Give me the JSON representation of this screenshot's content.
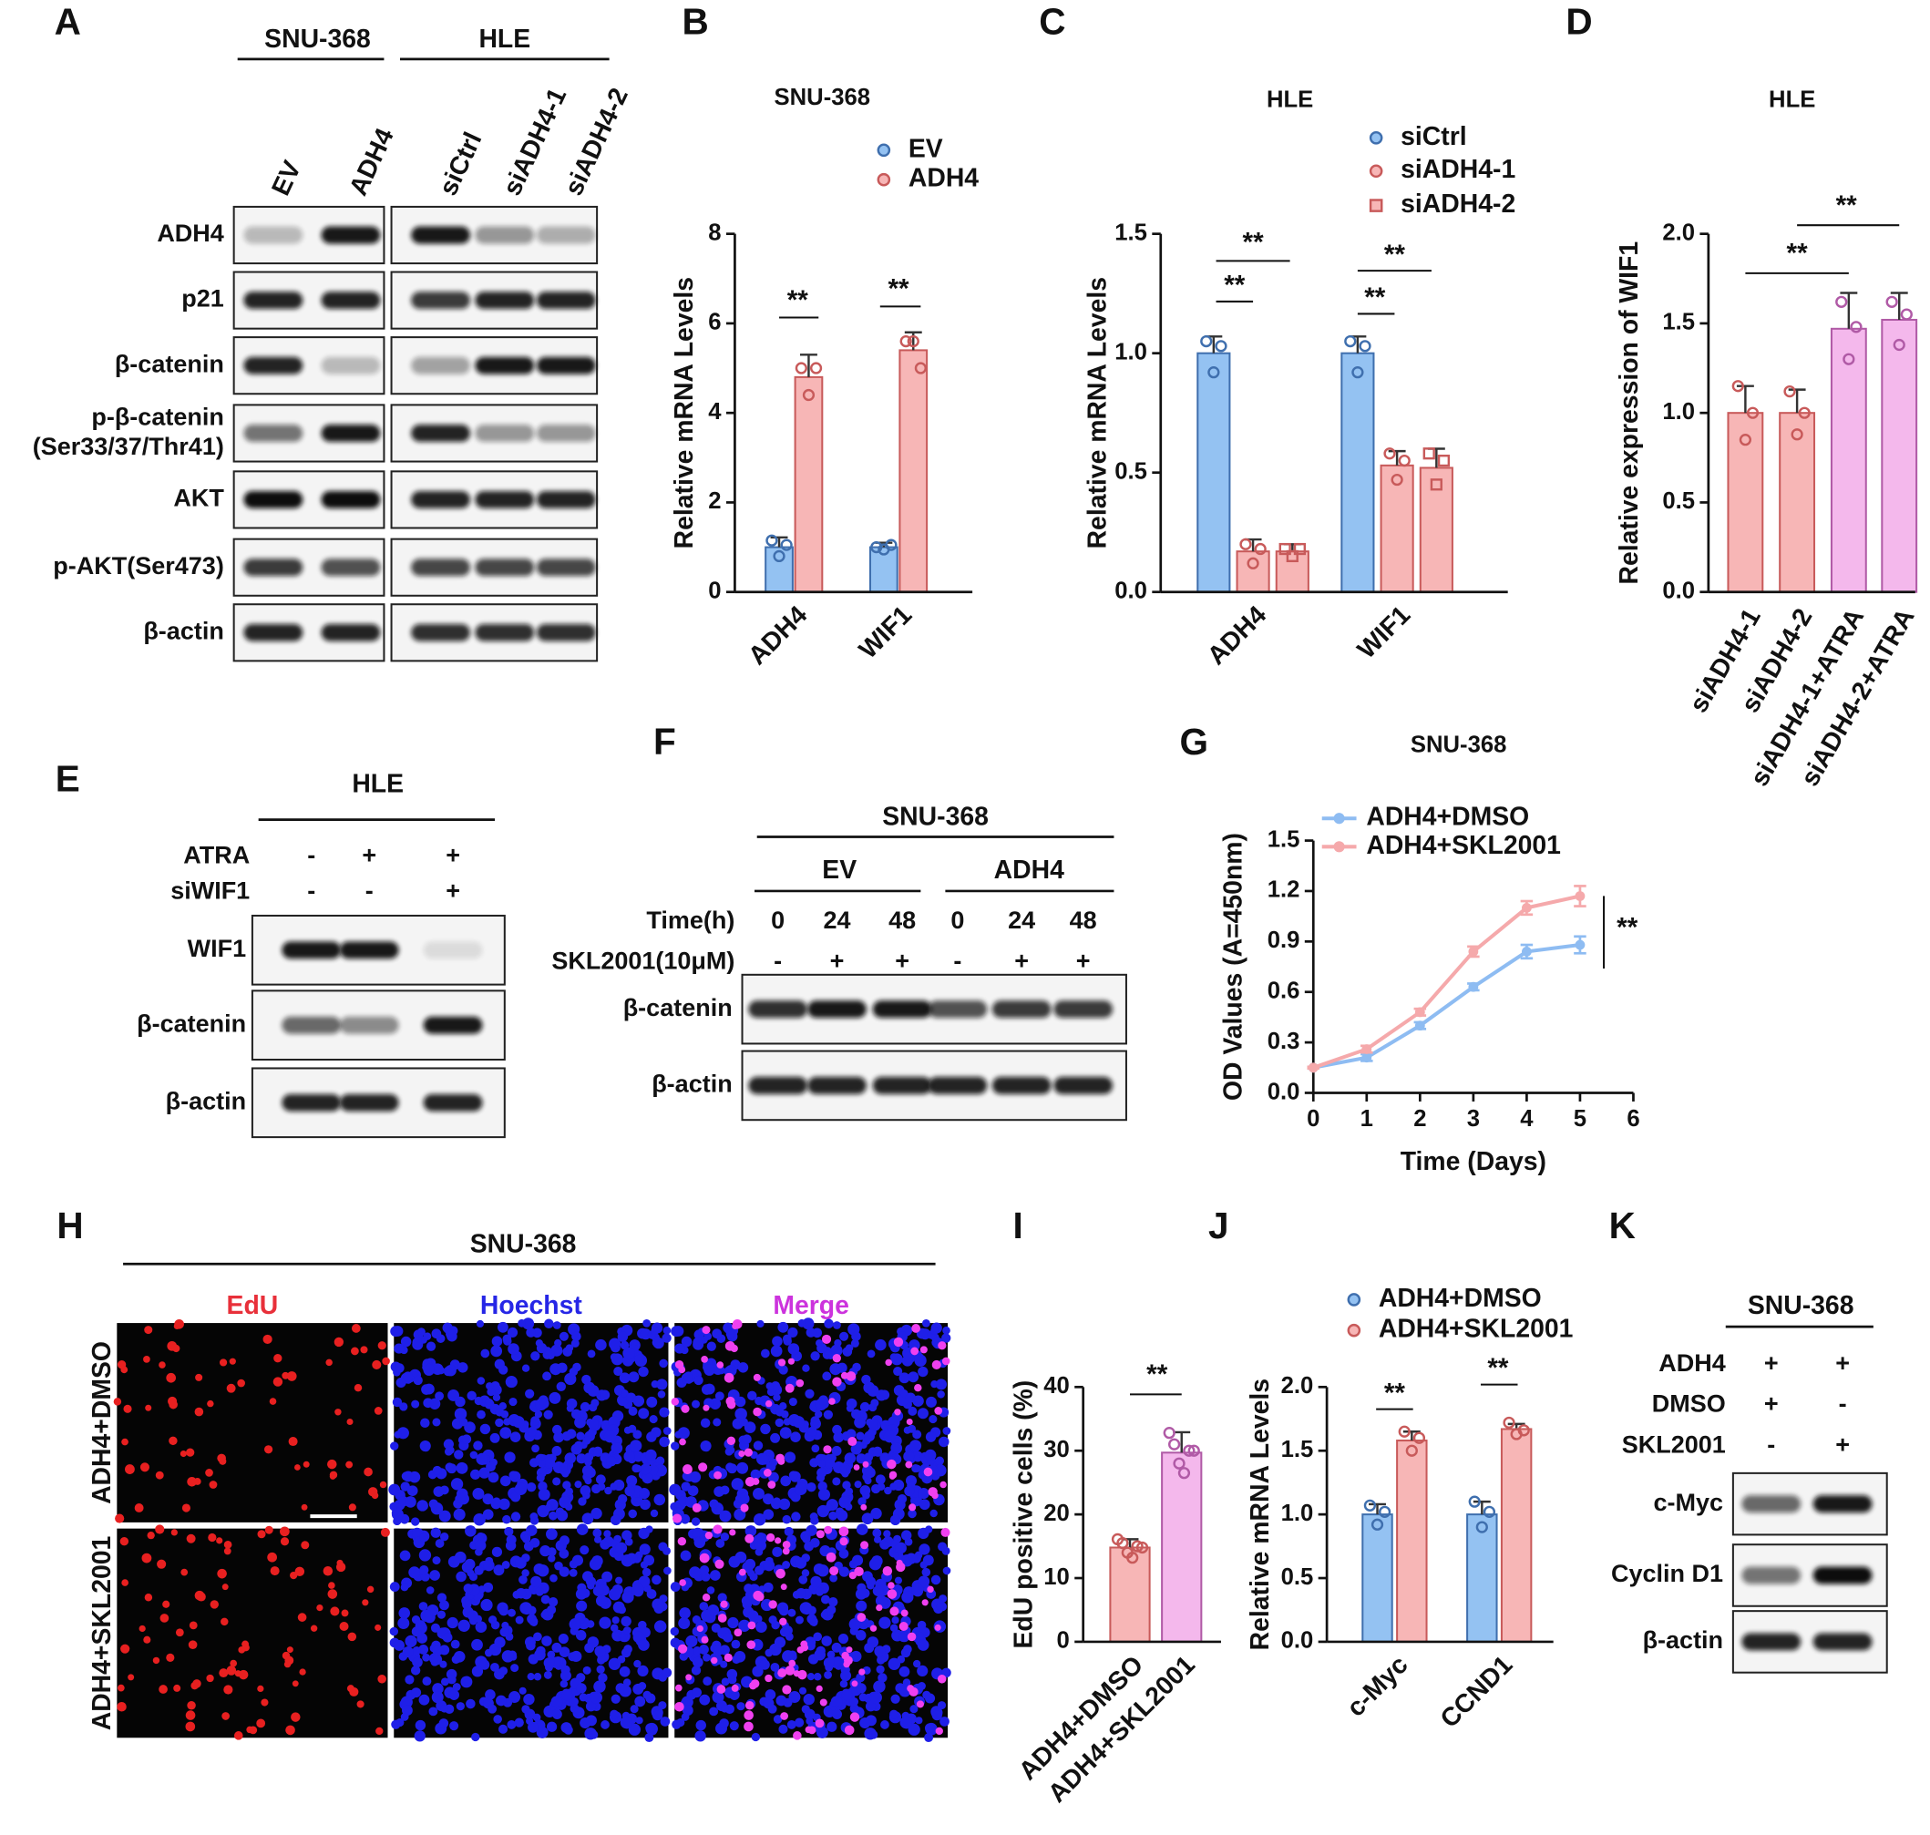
{
  "letters": [
    "A",
    "B",
    "C",
    "D",
    "E",
    "F",
    "G",
    "H",
    "I",
    "J",
    "K"
  ],
  "chart_data": [
    {
      "type": "bar",
      "title": "SNU-368",
      "ylabel": "Relative mRNA Levels",
      "categories": [
        "ADH4",
        "WIF1"
      ],
      "ylim": [
        0,
        8
      ],
      "yticks": [
        0,
        2,
        4,
        6,
        8
      ],
      "series": [
        {
          "name": "EV",
          "color": "#94c2f2",
          "edgecolor": "#3f6fae",
          "marker": "circle",
          "values": [
            1.0,
            1.0
          ],
          "errors": [
            0.22,
            0.1
          ],
          "points": [
            [
              1.15,
              0.8,
              1.05
            ],
            [
              1.0,
              0.95,
              1.05
            ]
          ]
        },
        {
          "name": "ADH4",
          "color": "#f7b6b6",
          "edgecolor": "#c85a5a",
          "marker": "circle",
          "values": [
            4.8,
            5.4
          ],
          "errors": [
            0.5,
            0.4
          ],
          "points": [
            [
              5.0,
              4.4,
              5.0
            ],
            [
              5.6,
              5.6,
              5.0
            ]
          ]
        }
      ],
      "annotations": [
        "**",
        "**"
      ]
    },
    {
      "type": "bar",
      "title": "HLE",
      "ylabel": "Relative mRNA Levels",
      "categories": [
        "ADH4",
        "WIF1"
      ],
      "ylim": [
        0,
        1.5
      ],
      "yticks": [
        {
          "value": 0,
          "label": "0.0"
        },
        0.5,
        {
          "value": 1,
          "label": "1.0"
        },
        1.5
      ],
      "series": [
        {
          "name": "siCtrl",
          "color": "#94c2f2",
          "edgecolor": "#3f6fae",
          "marker": "circle",
          "values": [
            1.0,
            1.0
          ],
          "errors": [
            0.07,
            0.07
          ],
          "points": [
            [
              1.05,
              0.92,
              1.03
            ],
            [
              1.05,
              0.92,
              1.03
            ]
          ]
        },
        {
          "name": "siADH4-1",
          "color": "#f7b6b6",
          "edgecolor": "#c85a5a",
          "marker": "circle",
          "values": [
            0.17,
            0.53
          ],
          "errors": [
            0.05,
            0.06
          ],
          "points": [
            [
              0.2,
              0.12,
              0.18
            ],
            [
              0.58,
              0.47,
              0.55
            ]
          ]
        },
        {
          "name": "siADH4-2",
          "color": "#f7b6b6",
          "edgecolor": "#c85a5a",
          "marker": "square",
          "values": [
            0.17,
            0.52
          ],
          "errors": [
            0.03,
            0.08
          ],
          "points": [
            [
              0.18,
              0.15,
              0.18
            ],
            [
              0.58,
              0.45,
              0.55
            ]
          ]
        }
      ],
      "annotations": [
        "**",
        "**",
        "**",
        "**"
      ]
    },
    {
      "type": "bar",
      "title": "HLE",
      "ylabel": "Relative expression of WIF1",
      "categories": [
        "siADH4-1",
        "siADH4-2",
        "siADH4-1+ATRA",
        "siADH4-2+ATRA"
      ],
      "ylim": [
        0,
        2
      ],
      "yticks": [
        {
          "value": 0,
          "label": "0.0"
        },
        0.5,
        {
          "value": 1,
          "label": "1.0"
        },
        1.5,
        {
          "value": 2,
          "label": "2.0"
        }
      ],
      "values": [
        1.0,
        1.0,
        1.47,
        1.52
      ],
      "errors": [
        0.15,
        0.13,
        0.2,
        0.15
      ],
      "points": [
        [
          1.15,
          0.85,
          1.0
        ],
        [
          1.12,
          0.88,
          1.0
        ],
        [
          1.62,
          1.3,
          1.48
        ],
        [
          1.62,
          1.38,
          1.55
        ]
      ],
      "colors": [
        "#f7b6b6",
        "#f7b6b6",
        "#f4b8ec",
        "#f4b8ec"
      ],
      "edgecolors": [
        "#c85a5a",
        "#c85a5a",
        "#b05aa6",
        "#b05aa6"
      ],
      "marker": "circle",
      "annotations": [
        "**",
        "**"
      ]
    },
    {
      "type": "line",
      "title": "SNU-368",
      "xlabel": "Time (Days)",
      "ylabel": "OD Values (A=450nm)",
      "x": [
        0,
        1,
        2,
        3,
        4,
        5
      ],
      "xlim": [
        0,
        6
      ],
      "xticks": [
        0,
        1,
        2,
        3,
        4,
        5,
        6
      ],
      "ylim": [
        0,
        1.5
      ],
      "yticks": [
        {
          "value": 0,
          "label": "0.0"
        },
        0.3,
        0.6,
        0.9,
        1.2,
        1.5
      ],
      "series": [
        {
          "name": "ADH4+DMSO",
          "color": "#8ebcf2",
          "values": [
            0.15,
            0.21,
            0.4,
            0.63,
            0.84,
            0.88
          ],
          "errors": [
            0.005,
            0.02,
            0.02,
            0.02,
            0.04,
            0.05
          ]
        },
        {
          "name": "ADH4+SKL2001",
          "color": "#f5a9ab",
          "values": [
            0.15,
            0.26,
            0.48,
            0.84,
            1.1,
            1.17
          ],
          "errors": [
            0.005,
            0.02,
            0.02,
            0.03,
            0.04,
            0.06
          ]
        }
      ],
      "annotations": [
        "**"
      ]
    },
    {
      "type": "bar",
      "ylabel": "EdU positive cells (%)",
      "categories": [
        "ADH4+DMSO",
        "ADH4+SKL2001"
      ],
      "ylim": [
        0,
        40
      ],
      "yticks": [
        0,
        10,
        20,
        30,
        40
      ],
      "values": [
        14.8,
        29.7
      ],
      "errors": [
        1.3,
        3.2
      ],
      "points": [
        [
          16.1,
          15.5,
          14.0,
          13.2,
          15.0,
          14.8
        ],
        [
          32.8,
          31.0,
          28.0,
          26.5,
          30.0,
          30.0
        ]
      ],
      "colors": [
        "#f7b6b6",
        "#f4b8ec"
      ],
      "edgecolors": [
        "#c85a5a",
        "#b05aa6"
      ],
      "marker": "circle",
      "annotations": [
        "**"
      ]
    },
    {
      "type": "bar",
      "ylabel": "Relative mRNA Levels",
      "categories": [
        "c-Myc",
        "CCND1"
      ],
      "ylim": [
        0,
        2
      ],
      "yticks": [
        {
          "value": 0,
          "label": "0.0"
        },
        0.5,
        {
          "value": 1,
          "label": "1.0"
        },
        1.5,
        {
          "value": 2,
          "label": "2.0"
        }
      ],
      "series": [
        {
          "name": "ADH4+DMSO",
          "color": "#94c2f2",
          "edgecolor": "#3f6fae",
          "marker": "circle",
          "values": [
            1.0,
            1.0
          ],
          "errors": [
            0.08,
            0.1
          ],
          "points": [
            [
              1.07,
              0.92,
              1.02
            ],
            [
              1.1,
              0.9,
              1.02
            ]
          ]
        },
        {
          "name": "ADH4+SKL2001",
          "color": "#f7b6b6",
          "edgecolor": "#c85a5a",
          "marker": "circle",
          "values": [
            1.58,
            1.67
          ],
          "errors": [
            0.07,
            0.04
          ],
          "points": [
            [
              1.65,
              1.5,
              1.6
            ],
            [
              1.72,
              1.63,
              1.66
            ]
          ]
        }
      ],
      "annotations": [
        "**",
        "**"
      ]
    }
  ],
  "blots": [
    {
      "groups": [
        "SNU-368",
        "HLE"
      ],
      "lanes": [
        "EV",
        "ADH4",
        "siCtrl",
        "siADH4-1",
        "siADH4-2"
      ],
      "bands": [
        [
          "ADH4"
        ],
        [
          "p21"
        ],
        [
          "β-catenin"
        ],
        [
          "p-β-catenin",
          "(Ser33/37/Thr41)"
        ],
        [
          "AKT"
        ],
        [
          "p-AKT(Ser473)"
        ],
        [
          "β-actin"
        ]
      ]
    },
    {
      "header": "HLE",
      "conditions": [
        {
          "name": "ATRA",
          "marks": [
            "-",
            "+",
            "+"
          ]
        },
        {
          "name": "siWIF1",
          "marks": [
            "-",
            "-",
            "+"
          ]
        }
      ],
      "bands": [
        [
          "WIF1"
        ],
        [
          "β-catenin"
        ],
        [
          "β-actin"
        ]
      ]
    },
    {
      "header": "SNU-368",
      "groups": [
        "EV",
        "ADH4"
      ],
      "conditions": [
        {
          "name": "Time(h)",
          "marks": [
            "0",
            "24",
            "48",
            "0",
            "24",
            "48"
          ]
        },
        {
          "name": "SKL2001(10μM)",
          "marks": [
            "-",
            "+",
            "+",
            "-",
            "+",
            "+"
          ]
        }
      ],
      "bands": [
        [
          "β-catenin"
        ],
        [
          "β-actin"
        ]
      ]
    },
    {
      "header": "SNU-368",
      "conditions": [
        {
          "name": "ADH4",
          "marks": [
            "+",
            "+"
          ]
        },
        {
          "name": "DMSO",
          "marks": [
            "+",
            "-"
          ]
        },
        {
          "name": "SKL2001",
          "marks": [
            "-",
            "+"
          ]
        }
      ],
      "bands": [
        [
          "c-Myc"
        ],
        [
          "Cyclin D1"
        ],
        [
          "β-actin"
        ]
      ]
    }
  ],
  "micrograph": {
    "header": "SNU-368",
    "channels": [
      "EdU",
      "Hoechst",
      "Merge"
    ],
    "rows": [
      "ADH4+DMSO",
      "ADH4+SKL2001"
    ]
  }
}
